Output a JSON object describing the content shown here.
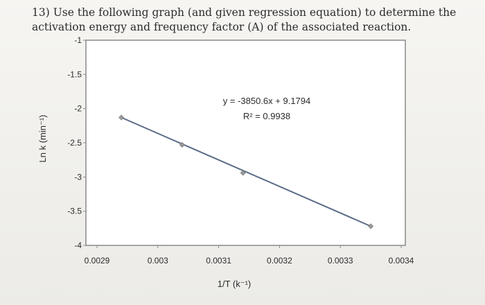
{
  "question": {
    "text": "13) Use the following graph (and given regression equation) to determine the activation energy and frequency factor (A) of the associated reaction."
  },
  "chart_data": {
    "type": "scatter",
    "title": "",
    "xlabel": "1/T (k⁻¹)",
    "ylabel": "Ln k (min⁻¹)",
    "xlim": [
      0.0029,
      0.0034
    ],
    "ylim": [
      -4,
      -1
    ],
    "x_ticks": [
      "0.0029",
      "0.003",
      "0.0031",
      "0.0032",
      "0.0033",
      "0.0034"
    ],
    "y_ticks": [
      "-1",
      "-1.5",
      "-2",
      "-2.5",
      "-3",
      "-3.5",
      "-4"
    ],
    "series": [
      {
        "points": [
          {
            "x": 0.00294,
            "y": -2.13
          },
          {
            "x": 0.00304,
            "y": -2.53
          },
          {
            "x": 0.00314,
            "y": -2.94
          },
          {
            "x": 0.00335,
            "y": -3.72
          }
        ]
      }
    ],
    "trendline": {
      "slope": -3850.6,
      "intercept": 9.1794,
      "equation": "y = -3850.6x + 9.1794",
      "r_squared": "R² = 0.9938"
    },
    "grid": false,
    "legend": "none",
    "colors": {
      "line": "#5b6b86",
      "marker": "#9a9a9a",
      "frame": "#8a8a8a"
    }
  }
}
